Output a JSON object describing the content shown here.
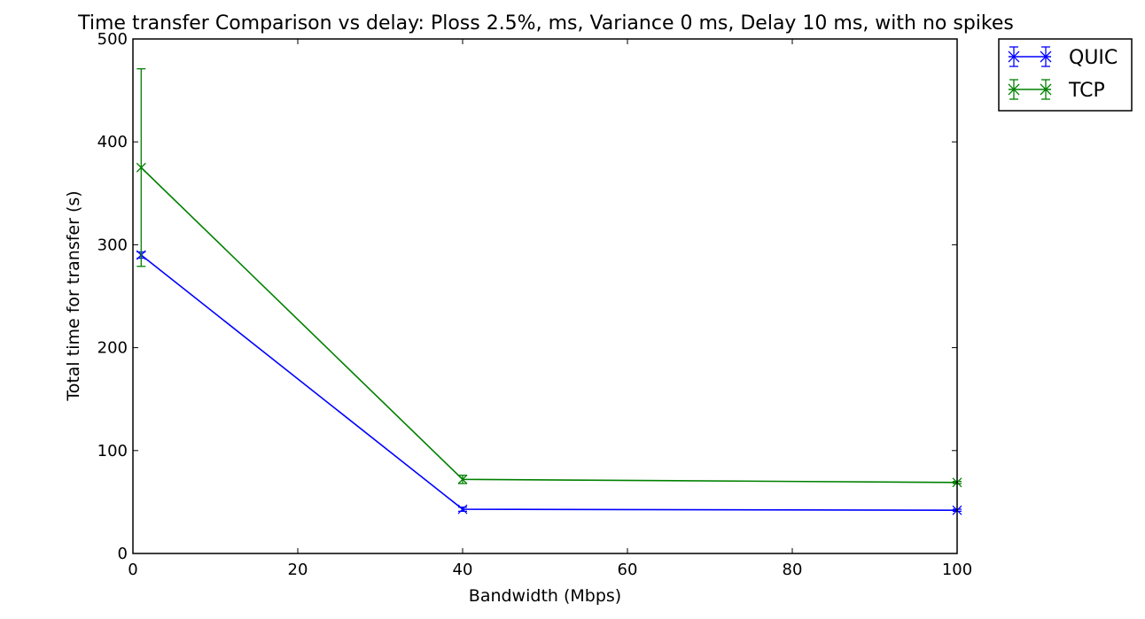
{
  "chart_data": {
    "type": "line",
    "title": "Time transfer Comparison vs delay: Ploss 2.5%, ms, Variance 0 ms, Delay 10 ms, with no spikes",
    "xlabel": "Bandwidth (Mbps)",
    "ylabel": "Total time for transfer (s)",
    "xlim": [
      0,
      100
    ],
    "ylim": [
      0,
      500
    ],
    "xticks": [
      0,
      20,
      40,
      60,
      80,
      100
    ],
    "yticks": [
      0,
      100,
      200,
      300,
      400,
      500
    ],
    "grid": false,
    "legend_position": "outside top-right",
    "x": [
      1,
      40,
      100
    ],
    "series": [
      {
        "name": "QUIC",
        "color": "#0000ff",
        "marker": "x",
        "values": [
          290,
          43,
          42
        ],
        "error": [
          3,
          2,
          1
        ]
      },
      {
        "name": "TCP",
        "color": "#008000",
        "marker": "x",
        "values": [
          375,
          72,
          69
        ],
        "error": [
          96,
          4,
          1
        ]
      }
    ]
  }
}
